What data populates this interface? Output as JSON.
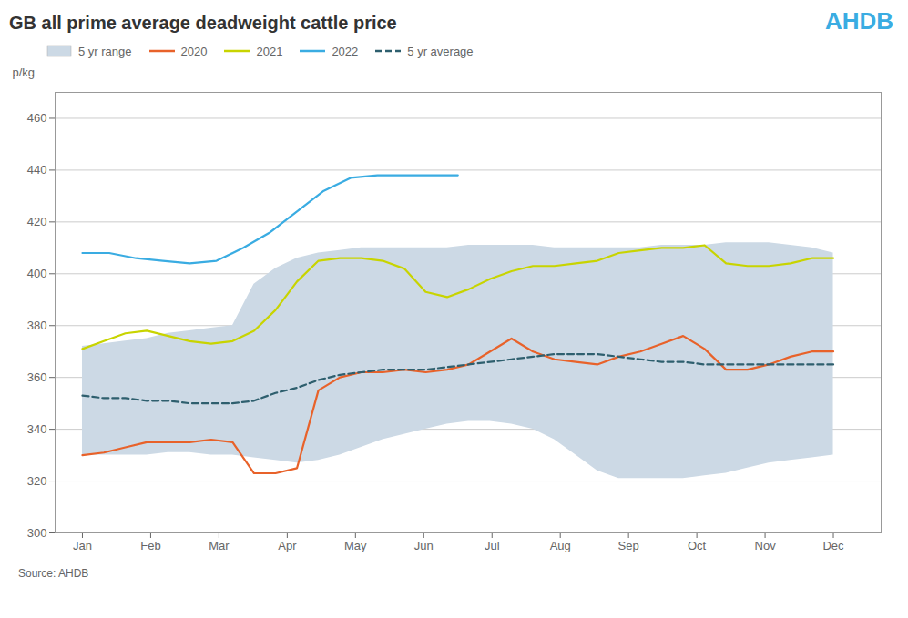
{
  "chart_data": {
    "type": "line",
    "title": "GB all prime average deadweight cattle price",
    "ylabel": "p/kg",
    "annotations": [
      {
        "text": "AHDB",
        "color": "#3aace2"
      },
      {
        "text": "Source: AHDB"
      }
    ],
    "xlim": [
      -0.4,
      11.7
    ],
    "xticks": [
      {
        "value": 0,
        "label": "Jan"
      },
      {
        "value": 1,
        "label": "Feb"
      },
      {
        "value": 2,
        "label": "Mar"
      },
      {
        "value": 3,
        "label": "Apr"
      },
      {
        "value": 4,
        "label": "May"
      },
      {
        "value": 5,
        "label": "Jun"
      },
      {
        "value": 6,
        "label": "Jul"
      },
      {
        "value": 7,
        "label": "Aug"
      },
      {
        "value": 8,
        "label": "Sep"
      },
      {
        "value": 9,
        "label": "Oct"
      },
      {
        "value": 10,
        "label": "Nov"
      },
      {
        "value": 11,
        "label": "Dec"
      }
    ],
    "ylim": [
      300,
      470
    ],
    "yticks": [
      300,
      320,
      340,
      360,
      380,
      400,
      420,
      440,
      460
    ],
    "grid": "y",
    "legend": "top",
    "series": [
      {
        "name": "5 yr range",
        "type": "area",
        "color": "#ccd9e5",
        "x": [
          0,
          0.314286,
          0.628571,
          0.942857,
          1.257143,
          1.571429,
          1.885714,
          2.2,
          2.514286,
          2.828571,
          3.142857,
          3.457143,
          3.771429,
          4.085714,
          4.4,
          4.714286,
          5.028571,
          5.342857,
          5.657143,
          5.971429,
          6.285714,
          6.6,
          6.914286,
          7.228571,
          7.542857,
          7.857143,
          8.171429,
          8.485714,
          8.8,
          9.114286,
          9.428571,
          9.742857,
          10.057143,
          10.371429,
          10.685714,
          11
        ],
        "lower": [
          330,
          330,
          330,
          330,
          331,
          331,
          330,
          330,
          329,
          328,
          327,
          328,
          330,
          333,
          336,
          338,
          340,
          342,
          343,
          343,
          342,
          340,
          336,
          330,
          324,
          321,
          321,
          321,
          321,
          322,
          323,
          325,
          327,
          328,
          329,
          330
        ],
        "upper": [
          372,
          373,
          374,
          375,
          377,
          378,
          379,
          380,
          396,
          402,
          406,
          408,
          409,
          410,
          410,
          410,
          410,
          410,
          411,
          411,
          411,
          411,
          410,
          410,
          410,
          410,
          410,
          411,
          411,
          411,
          412,
          412,
          412,
          411,
          410,
          408
        ]
      },
      {
        "name": "2020",
        "color": "#e8622a",
        "x": [
          0,
          0.314286,
          0.628571,
          0.942857,
          1.257143,
          1.571429,
          1.885714,
          2.2,
          2.514286,
          2.828571,
          3.142857,
          3.457143,
          3.771429,
          4.085714,
          4.4,
          4.714286,
          5.028571,
          5.342857,
          5.657143,
          5.971429,
          6.285714,
          6.6,
          6.914286,
          7.228571,
          7.542857,
          7.857143,
          8.171429,
          8.485714,
          8.8,
          9.114286,
          9.428571,
          9.742857,
          10.057143,
          10.371429,
          10.685714,
          11
        ],
        "values": [
          330,
          331,
          333,
          335,
          335,
          335,
          336,
          335,
          323,
          323,
          325,
          355,
          360,
          362,
          362,
          363,
          362,
          363,
          365,
          370,
          375,
          370,
          367,
          366,
          365,
          368,
          370,
          373,
          376,
          371,
          363,
          363,
          365,
          368,
          370,
          370
        ]
      },
      {
        "name": "2021",
        "color": "#c8d400",
        "x": [
          0,
          0.314286,
          0.628571,
          0.942857,
          1.257143,
          1.571429,
          1.885714,
          2.2,
          2.514286,
          2.828571,
          3.142857,
          3.457143,
          3.771429,
          4.085714,
          4.4,
          4.714286,
          5.028571,
          5.342857,
          5.657143,
          5.971429,
          6.285714,
          6.6,
          6.914286,
          7.228571,
          7.542857,
          7.857143,
          8.171429,
          8.485714,
          8.8,
          9.114286,
          9.428571,
          9.742857,
          10.057143,
          10.371429,
          10.685714,
          11
        ],
        "values": [
          371,
          374,
          377,
          378,
          376,
          374,
          373,
          374,
          378,
          386,
          397,
          405,
          406,
          406,
          405,
          402,
          393,
          391,
          394,
          398,
          401,
          403,
          403,
          404,
          405,
          408,
          409,
          410,
          410,
          411,
          404,
          403,
          403,
          404,
          406,
          406
        ]
      },
      {
        "name": "2022",
        "color": "#3aace2",
        "x": [
          0,
          0.392857,
          0.785714,
          1.178571,
          1.571429,
          1.964286,
          2.357143,
          2.75,
          3.142857,
          3.535714,
          3.928571,
          4.321429,
          4.714286,
          5.107143,
          5.5
        ],
        "values": [
          408,
          408,
          406,
          405,
          404,
          405,
          410,
          416,
          424,
          432,
          437,
          438,
          438,
          438,
          438
        ]
      },
      {
        "name": "5 yr average",
        "color": "#2e5f6e",
        "line_style": "dashed",
        "x": [
          0,
          0.314286,
          0.628571,
          0.942857,
          1.257143,
          1.571429,
          1.885714,
          2.2,
          2.514286,
          2.828571,
          3.142857,
          3.457143,
          3.771429,
          4.085714,
          4.4,
          4.714286,
          5.028571,
          5.342857,
          5.657143,
          5.971429,
          6.285714,
          6.6,
          6.914286,
          7.228571,
          7.542857,
          7.857143,
          8.171429,
          8.485714,
          8.8,
          9.114286,
          9.428571,
          9.742857,
          10.057143,
          10.371429,
          10.685714,
          11
        ],
        "values": [
          353,
          352,
          352,
          351,
          351,
          350,
          350,
          350,
          351,
          354,
          356,
          359,
          361,
          362,
          363,
          363,
          363,
          364,
          365,
          366,
          367,
          368,
          369,
          369,
          369,
          368,
          367,
          366,
          366,
          365,
          365,
          365,
          365,
          365,
          365,
          365
        ]
      }
    ]
  }
}
